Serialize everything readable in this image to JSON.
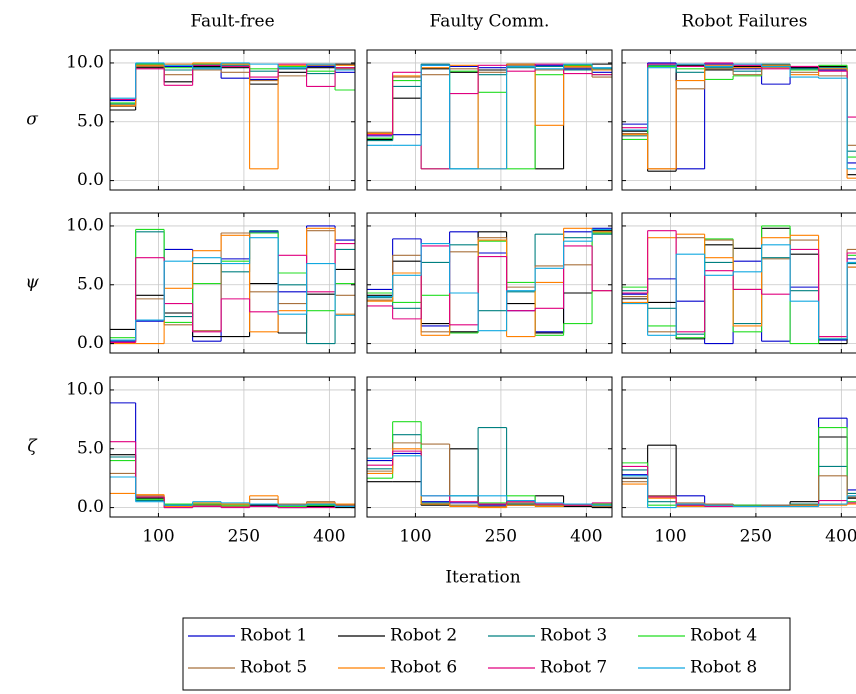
{
  "chart_data": {
    "type": "line",
    "step": "post",
    "grid": true,
    "columns": [
      "Fault-free",
      "Faulty Comm.",
      "Robot Failures"
    ],
    "rows": [
      "σ",
      "ψ",
      "ζ"
    ],
    "xlabel": "Iteration",
    "x": [
      15,
      60,
      110,
      160,
      210,
      260,
      310,
      360,
      410
    ],
    "xlim": [
      15,
      445
    ],
    "xticks": [
      100,
      250,
      400
    ],
    "ylim": [
      -0.8,
      11.1
    ],
    "yticks": [
      {
        "value": 0,
        "label": "0.0"
      },
      {
        "value": 5,
        "label": "5.0"
      },
      {
        "value": 10,
        "label": "10.0"
      }
    ],
    "legend": "bottom",
    "series": [
      {
        "name": "Robot 1",
        "color": "#0000cc"
      },
      {
        "name": "Robot 2",
        "color": "#000000"
      },
      {
        "name": "Robot 3",
        "color": "#008080"
      },
      {
        "name": "Robot 4",
        "color": "#22dd22"
      },
      {
        "name": "Robot 5",
        "color": "#a8703c"
      },
      {
        "name": "Robot 6",
        "color": "#ff8000"
      },
      {
        "name": "Robot 7",
        "color": "#e0007f"
      },
      {
        "name": "Robot 8",
        "color": "#10a8e0"
      }
    ],
    "panels": [
      {
        "values": [
          [
            6.8,
            9.8,
            9.7,
            9.8,
            8.7,
            8.6,
            9.5,
            9.7,
            9.2
          ],
          [
            6.0,
            9.6,
            8.4,
            9.7,
            9.6,
            8.2,
            9.2,
            9.6,
            9.9
          ],
          [
            6.5,
            9.9,
            9.4,
            9.6,
            9.8,
            9.3,
            9.5,
            9.1,
            9.6
          ],
          [
            6.6,
            9.9,
            9.6,
            9.9,
            9.9,
            9.5,
            9.7,
            9.3,
            7.7
          ],
          [
            6.3,
            9.7,
            9.0,
            9.4,
            9.2,
            8.5,
            8.9,
            9.8,
            9.5
          ],
          [
            6.4,
            9.8,
            9.9,
            10.0,
            9.9,
            1.0,
            9.8,
            9.9,
            9.8
          ],
          [
            6.9,
            9.5,
            8.1,
            9.8,
            9.7,
            8.8,
            9.9,
            8.0,
            9.6
          ],
          [
            7.0,
            10.0,
            9.8,
            9.5,
            10.0,
            9.9,
            9.6,
            9.9,
            9.4
          ]
        ]
      },
      {
        "values": [
          [
            3.8,
            3.9,
            9.8,
            9.7,
            9.6,
            9.9,
            9.8,
            9.5,
            9.2
          ],
          [
            3.5,
            7.0,
            9.5,
            9.2,
            9.4,
            9.9,
            1.0,
            9.8,
            9.9
          ],
          [
            3.4,
            8.0,
            9.9,
            1.0,
            9.0,
            9.6,
            9.7,
            9.4,
            9.5
          ],
          [
            3.6,
            8.5,
            1.0,
            9.3,
            7.5,
            1.0,
            9.0,
            9.8,
            9.0
          ],
          [
            4.1,
            8.8,
            9.0,
            9.5,
            9.2,
            9.8,
            9.4,
            9.6,
            8.8
          ],
          [
            4.0,
            8.9,
            9.6,
            9.8,
            1.0,
            9.9,
            4.7,
            9.7,
            9.4
          ],
          [
            3.9,
            9.2,
            1.0,
            7.4,
            9.8,
            9.3,
            9.9,
            9.1,
            9.0
          ],
          [
            3.0,
            3.0,
            9.8,
            1.0,
            1.0,
            9.7,
            9.5,
            9.9,
            9.6
          ]
        ]
      },
      {
        "values": [
          [
            4.8,
            10.0,
            1.0,
            9.9,
            9.5,
            8.2,
            9.6,
            9.4,
            1.5
          ],
          [
            4.2,
            0.8,
            9.8,
            9.4,
            9.7,
            9.8,
            9.6,
            9.7,
            0.5
          ],
          [
            3.8,
            9.8,
            9.2,
            9.6,
            9.3,
            9.9,
            9.5,
            9.6,
            2.5
          ],
          [
            3.5,
            9.7,
            9.5,
            8.6,
            8.9,
            9.7,
            9.4,
            9.8,
            2.0
          ],
          [
            4.0,
            1.0,
            7.8,
            9.5,
            9.0,
            9.6,
            9.2,
            8.9,
            3.0
          ],
          [
            3.9,
            1.0,
            8.5,
            9.8,
            9.6,
            9.8,
            9.0,
            9.5,
            0.2
          ],
          [
            4.5,
            9.9,
            9.7,
            10.0,
            9.8,
            9.5,
            9.7,
            9.3,
            5.4
          ],
          [
            4.3,
            9.6,
            9.9,
            9.7,
            9.9,
            9.7,
            8.8,
            8.7,
            1.0
          ]
        ]
      },
      {
        "values": [
          [
            0.2,
            1.9,
            8.0,
            0.2,
            7.2,
            9.5,
            4.4,
            10.0,
            8.8
          ],
          [
            1.2,
            4.1,
            2.6,
            0.6,
            0.6,
            5.1,
            0.9,
            4.2,
            6.3
          ],
          [
            0.3,
            9.5,
            2.3,
            6.8,
            6.1,
            9.6,
            5.0,
            0.0,
            8.0
          ],
          [
            0.5,
            9.7,
            1.8,
            5.1,
            7.0,
            9.4,
            6.0,
            2.8,
            5.1
          ],
          [
            0.1,
            3.8,
            1.6,
            1.1,
            9.4,
            4.4,
            3.4,
            9.6,
            4.1
          ],
          [
            0.0,
            0.0,
            4.7,
            7.9,
            9.2,
            1.0,
            2.8,
            9.8,
            2.5
          ],
          [
            0.1,
            7.3,
            3.4,
            1.0,
            3.8,
            2.7,
            7.5,
            4.4,
            8.5
          ],
          [
            0.3,
            2.0,
            7.0,
            7.3,
            6.8,
            9.0,
            2.5,
            6.8,
            2.4
          ]
        ]
      },
      {
        "values": [
          [
            4.6,
            8.9,
            1.5,
            9.5,
            7.7,
            2.8,
            1.0,
            9.5,
            9.8
          ],
          [
            4.1,
            7.0,
            1.7,
            1.0,
            9.5,
            3.4,
            0.9,
            4.3,
            9.6
          ],
          [
            3.9,
            3.0,
            6.9,
            8.4,
            2.8,
            4.4,
            9.3,
            9.0,
            9.3
          ],
          [
            4.3,
            3.5,
            4.1,
            0.9,
            8.7,
            5.2,
            0.7,
            1.7,
            9.4
          ],
          [
            3.7,
            7.5,
            1.0,
            7.8,
            9.0,
            4.8,
            6.6,
            6.7,
            4.5
          ],
          [
            3.6,
            6.0,
            0.7,
            4.3,
            8.8,
            0.6,
            5.2,
            9.8,
            9.5
          ],
          [
            3.2,
            2.1,
            8.3,
            1.6,
            7.4,
            2.8,
            3.0,
            8.3,
            4.5
          ],
          [
            4.0,
            5.8,
            8.5,
            4.3,
            1.1,
            4.5,
            6.4,
            8.7,
            9.7
          ]
        ]
      },
      {
        "values": [
          [
            4.2,
            5.5,
            3.6,
            0.0,
            7.0,
            0.2,
            4.8,
            0.3,
            7.2
          ],
          [
            3.8,
            3.5,
            0.4,
            8.4,
            8.1,
            9.8,
            7.6,
            0.0,
            6.5
          ],
          [
            4.5,
            3.0,
            0.8,
            6.9,
            1.7,
            7.3,
            4.5,
            0.4,
            6.8
          ],
          [
            4.8,
            1.5,
            0.5,
            8.9,
            1.0,
            10.0,
            0.0,
            0.4,
            7.5
          ],
          [
            4.0,
            1.0,
            9.0,
            8.8,
            4.6,
            7.2,
            8.8,
            0.6,
            8.0
          ],
          [
            3.5,
            9.0,
            9.3,
            7.3,
            1.5,
            9.0,
            9.2,
            0.6,
            6.5
          ],
          [
            4.3,
            9.6,
            1.0,
            6.2,
            4.6,
            4.2,
            8.0,
            0.6,
            7.7
          ],
          [
            3.4,
            0.7,
            7.6,
            5.8,
            6.1,
            8.4,
            3.6,
            0.4,
            6.9
          ]
        ]
      },
      {
        "values": [
          [
            8.9,
            0.9,
            0.2,
            0.3,
            0.3,
            0.2,
            0.1,
            0.2,
            0.2
          ],
          [
            4.5,
            0.8,
            0.1,
            0.2,
            0.1,
            0.2,
            0.0,
            0.1,
            0.0
          ],
          [
            4.3,
            0.6,
            0.2,
            0.1,
            0.3,
            0.1,
            0.2,
            0.2,
            0.1
          ],
          [
            4.0,
            0.7,
            0.3,
            0.3,
            0.2,
            0.3,
            0.1,
            0.2,
            0.3
          ],
          [
            2.9,
            1.0,
            0.0,
            0.2,
            0.1,
            0.7,
            0.3,
            0.5,
            0.2
          ],
          [
            1.2,
            1.1,
            0.1,
            0.4,
            0.3,
            1.0,
            0.2,
            0.4,
            0.3
          ],
          [
            5.6,
            0.9,
            0.0,
            0.1,
            0.0,
            0.1,
            0.0,
            0.0,
            0.1
          ],
          [
            2.6,
            0.5,
            0.2,
            0.5,
            0.4,
            0.3,
            0.2,
            0.3,
            0.1
          ]
        ]
      },
      {
        "values": [
          [
            4.0,
            4.6,
            0.5,
            0.4,
            0.2,
            0.3,
            0.1,
            0.1,
            0.2
          ],
          [
            2.2,
            2.2,
            0.2,
            5.0,
            0.3,
            0.2,
            1.0,
            0.1,
            0.0
          ],
          [
            3.3,
            6.2,
            0.4,
            1.0,
            6.8,
            0.3,
            0.2,
            0.3,
            0.2
          ],
          [
            2.5,
            7.3,
            0.3,
            0.2,
            0.4,
            1.0,
            0.1,
            0.2,
            0.3
          ],
          [
            3.1,
            5.5,
            5.4,
            0.2,
            0.1,
            0.4,
            0.2,
            0.3,
            0.1
          ],
          [
            2.9,
            5.0,
            0.3,
            0.1,
            0.0,
            0.2,
            0.1,
            0.2,
            0.2
          ],
          [
            3.6,
            4.8,
            1.0,
            0.5,
            0.3,
            0.5,
            0.3,
            0.2,
            0.4
          ],
          [
            4.2,
            4.4,
            1.0,
            1.0,
            1.0,
            0.6,
            0.4,
            0.3,
            0.2
          ]
        ]
      },
      {
        "values": [
          [
            2.8,
            1.0,
            1.0,
            0.2,
            0.1,
            0.2,
            0.3,
            7.6,
            1.5
          ],
          [
            2.5,
            5.3,
            0.2,
            0.3,
            0.2,
            0.1,
            0.5,
            6.0,
            0.8
          ],
          [
            3.2,
            0.5,
            0.3,
            0.2,
            0.1,
            0.2,
            0.3,
            3.5,
            1.2
          ],
          [
            3.8,
            0.2,
            0.1,
            0.1,
            0.2,
            0.1,
            0.2,
            6.8,
            0.5
          ],
          [
            2.2,
            1.0,
            0.4,
            0.3,
            0.1,
            0.2,
            0.2,
            2.7,
            0.9
          ],
          [
            2.0,
            0.8,
            0.1,
            0.2,
            0.1,
            0.1,
            0.2,
            0.2,
            0.3
          ],
          [
            3.5,
            0.9,
            0.2,
            0.1,
            0.1,
            0.1,
            0.1,
            0.6,
            0.4
          ],
          [
            2.7,
            0.0,
            0.3,
            0.2,
            0.1,
            0.1,
            0.1,
            0.3,
            1.0
          ]
        ]
      }
    ]
  }
}
